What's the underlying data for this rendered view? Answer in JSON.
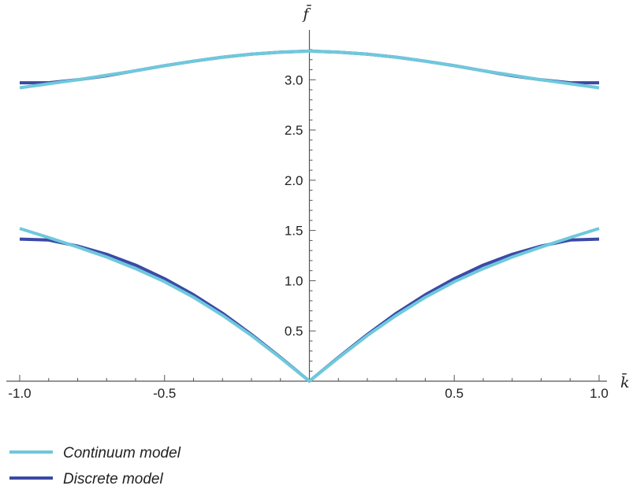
{
  "chart_data": {
    "type": "line",
    "xlabel": "k̄",
    "ylabel": "f̄",
    "xlim": [
      -1.0,
      1.0
    ],
    "ylim": [
      0,
      3.3
    ],
    "x_ticks": [
      -1.0,
      -0.5,
      0.5,
      1.0
    ],
    "x_tick_labels": [
      "-1.0",
      "-0.5",
      "0.5",
      "1.0"
    ],
    "y_ticks": [
      0.5,
      1.0,
      1.5,
      2.0,
      2.5,
      3.0
    ],
    "y_tick_labels": [
      "0.5",
      "1.0",
      "1.5",
      "2.0",
      "2.5",
      "3.0"
    ],
    "grid": false,
    "legend_position": "bottom-left",
    "series": [
      {
        "name": "Discrete model",
        "color": "#3a4aa5",
        "branches": [
          {
            "x": [
              -1.0,
              -0.9,
              -0.8,
              -0.7,
              -0.6,
              -0.5,
              -0.4,
              -0.3,
              -0.2,
              -0.1,
              0.0,
              0.1,
              0.2,
              0.3,
              0.4,
              0.5,
              0.6,
              0.7,
              0.8,
              0.9,
              1.0
            ],
            "y": [
              1.414,
              1.405,
              1.345,
              1.263,
              1.155,
              1.02,
              0.86,
              0.676,
              0.465,
              0.237,
              0.0,
              0.237,
              0.465,
              0.676,
              0.86,
              1.02,
              1.155,
              1.263,
              1.345,
              1.405,
              1.414
            ]
          },
          {
            "x": [
              -1.0,
              -0.9,
              -0.8,
              -0.7,
              -0.6,
              -0.5,
              -0.4,
              -0.3,
              -0.2,
              -0.1,
              0.0,
              0.1,
              0.2,
              0.3,
              0.4,
              0.5,
              0.6,
              0.7,
              0.8,
              0.9,
              1.0
            ],
            "y": [
              2.97,
              2.97,
              3.0,
              3.04,
              3.09,
              3.14,
              3.185,
              3.225,
              3.255,
              3.275,
              3.285,
              3.275,
              3.255,
              3.225,
              3.185,
              3.14,
              3.09,
              3.04,
              3.0,
              2.97,
              2.97
            ]
          }
        ]
      },
      {
        "name": "Continuum model",
        "color": "#6fc8dc",
        "branches": [
          {
            "x": [
              -1.0,
              -0.9,
              -0.8,
              -0.7,
              -0.6,
              -0.5,
              -0.4,
              -0.3,
              -0.2,
              -0.1,
              0.0,
              0.1,
              0.2,
              0.3,
              0.4,
              0.5,
              0.6,
              0.7,
              0.8,
              0.9,
              1.0
            ],
            "y": [
              1.52,
              1.43,
              1.335,
              1.235,
              1.12,
              0.99,
              0.835,
              0.655,
              0.455,
              0.232,
              0.0,
              0.232,
              0.455,
              0.655,
              0.835,
              0.99,
              1.12,
              1.235,
              1.335,
              1.43,
              1.52
            ]
          },
          {
            "x": [
              -1.0,
              -0.9,
              -0.8,
              -0.7,
              -0.6,
              -0.5,
              -0.4,
              -0.3,
              -0.2,
              -0.1,
              0.0,
              0.1,
              0.2,
              0.3,
              0.4,
              0.5,
              0.6,
              0.7,
              0.8,
              0.9,
              1.0
            ],
            "y": [
              2.92,
              2.96,
              3.0,
              3.045,
              3.09,
              3.14,
              3.185,
              3.225,
              3.255,
              3.275,
              3.285,
              3.275,
              3.255,
              3.225,
              3.185,
              3.14,
              3.09,
              3.045,
              3.0,
              2.96,
              2.92
            ]
          }
        ]
      }
    ],
    "legend": [
      {
        "label": "Continuum model",
        "color": "#6fc8dc"
      },
      {
        "label": "Discrete model",
        "color": "#3a4aa5"
      }
    ]
  }
}
